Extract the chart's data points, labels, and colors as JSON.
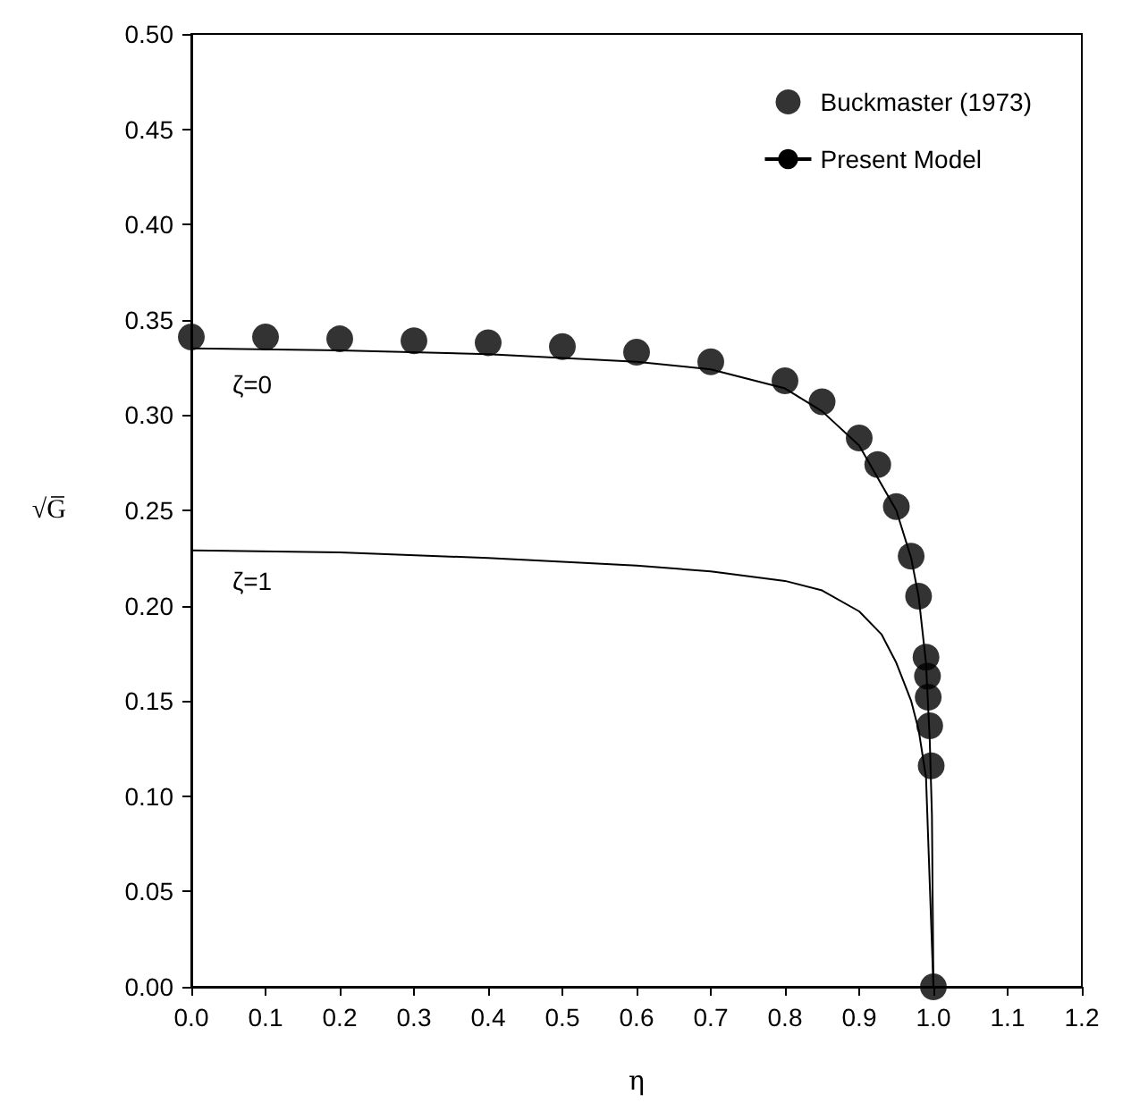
{
  "chart_data": {
    "type": "line",
    "xlabel": "η",
    "ylabel": "√G̅",
    "xlim": [
      0,
      1.2
    ],
    "ylim": [
      0,
      0.5
    ],
    "xticks": [
      {
        "value": 0,
        "label": "0.0"
      },
      {
        "value": 0.1,
        "label": "0.1"
      },
      {
        "value": 0.2,
        "label": "0.2"
      },
      {
        "value": 0.3,
        "label": "0.3"
      },
      {
        "value": 0.4,
        "label": "0.4"
      },
      {
        "value": 0.5,
        "label": "0.5"
      },
      {
        "value": 0.6,
        "label": "0.6"
      },
      {
        "value": 0.7,
        "label": "0.7"
      },
      {
        "value": 0.8,
        "label": "0.8"
      },
      {
        "value": 0.9,
        "label": "0.9"
      },
      {
        "value": 1,
        "label": "1.0"
      },
      {
        "value": 1.1,
        "label": "1.1"
      },
      {
        "value": 1.2,
        "label": "1.2"
      }
    ],
    "yticks": [
      {
        "value": 0,
        "label": "0.00"
      },
      {
        "value": 0.05,
        "label": "0.05"
      },
      {
        "value": 0.1,
        "label": "0.10"
      },
      {
        "value": 0.15,
        "label": "0.15"
      },
      {
        "value": 0.2,
        "label": "0.20"
      },
      {
        "value": 0.25,
        "label": "0.25"
      },
      {
        "value": 0.3,
        "label": "0.30"
      },
      {
        "value": 0.35,
        "label": "0.35"
      },
      {
        "value": 0.4,
        "label": "0.40"
      },
      {
        "value": 0.45,
        "label": "0.45"
      },
      {
        "value": 0.5,
        "label": "0.50"
      }
    ],
    "grid": false,
    "legend": "top right",
    "series": [
      {
        "name": "Buckmaster (1973)",
        "type": "scatter",
        "marker": "circle",
        "color": "#000000",
        "x": [
          0,
          0.1,
          0.2,
          0.3,
          0.4,
          0.5,
          0.6,
          0.7,
          0.8,
          0.85,
          0.9,
          0.925,
          0.95,
          0.97,
          0.98,
          0.99,
          0.992,
          0.993,
          0.995,
          0.997,
          1.0
        ],
        "values": [
          0.341,
          0.341,
          0.34,
          0.339,
          0.338,
          0.336,
          0.333,
          0.328,
          0.318,
          0.307,
          0.288,
          0.274,
          0.252,
          0.226,
          0.205,
          0.173,
          0.163,
          0.152,
          0.137,
          0.116,
          0.0
        ]
      },
      {
        "name": "Present Model",
        "line_style": "solid",
        "color": "#000000",
        "x": [
          0,
          0.2,
          0.4,
          0.6,
          0.7,
          0.8,
          0.85,
          0.9,
          0.95,
          0.97,
          0.98,
          0.99,
          0.995,
          0.998,
          1.0
        ],
        "values": [
          0.335,
          0.334,
          0.332,
          0.328,
          0.324,
          0.314,
          0.302,
          0.284,
          0.25,
          0.225,
          0.205,
          0.17,
          0.13,
          0.09,
          0.0
        ]
      },
      {
        "line_style": "solid",
        "color": "#000000",
        "x": [
          0,
          0.2,
          0.4,
          0.6,
          0.7,
          0.8,
          0.85,
          0.9,
          0.93,
          0.95,
          0.97,
          0.98,
          0.99,
          1.0
        ],
        "values": [
          0.229,
          0.228,
          0.225,
          0.221,
          0.218,
          0.213,
          0.208,
          0.197,
          0.185,
          0.17,
          0.15,
          0.135,
          0.11,
          0.0
        ]
      }
    ],
    "annotations": [
      "ζ=0",
      "ζ=1"
    ]
  }
}
